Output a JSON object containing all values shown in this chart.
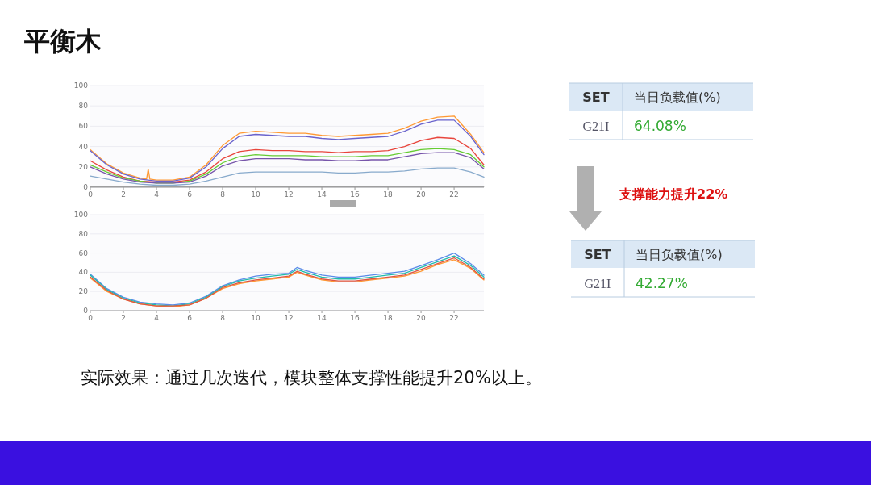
{
  "chart_data": [
    {
      "type": "line",
      "x": [
        0,
        1,
        2,
        3,
        4,
        5,
        6,
        7,
        8,
        9,
        10,
        11,
        12,
        13,
        14,
        15,
        16,
        17,
        18,
        19,
        20,
        21,
        22,
        23,
        23.8
      ],
      "xlim": [
        0,
        23.8
      ],
      "xticks": [
        0,
        2,
        4,
        6,
        8,
        10,
        12,
        14,
        16,
        18,
        20,
        22
      ],
      "ylim": [
        0,
        100
      ],
      "yticks": [
        0,
        20,
        40,
        60,
        80,
        100
      ],
      "grid": "y",
      "series": [
        {
          "color": "#ff9933",
          "x": [
            0,
            1,
            2,
            3,
            3.4,
            3.5,
            3.6,
            4,
            5,
            6,
            7,
            8,
            9,
            10,
            11,
            12,
            13,
            14,
            15,
            16,
            17,
            18,
            19,
            20,
            21,
            22,
            23,
            23.8
          ],
          "values": [
            37,
            23,
            14,
            9,
            8,
            18,
            8,
            7,
            7,
            10,
            22,
            41,
            53,
            55,
            54,
            53,
            53,
            51,
            50,
            51,
            52,
            53,
            58,
            65,
            69,
            70,
            52,
            34
          ]
        },
        {
          "color": "#6a63cc",
          "values": [
            36,
            22,
            13,
            8,
            6,
            6,
            9,
            20,
            38,
            50,
            52,
            51,
            50,
            50,
            48,
            47,
            48,
            49,
            50,
            55,
            62,
            66,
            66,
            50,
            32
          ]
        },
        {
          "color": "#e8453c",
          "values": [
            26,
            17,
            10,
            6,
            5,
            5,
            7,
            15,
            28,
            35,
            37,
            36,
            36,
            35,
            35,
            34,
            35,
            35,
            36,
            40,
            46,
            49,
            48,
            38,
            22
          ]
        },
        {
          "color": "#66cc33",
          "values": [
            22,
            15,
            9,
            6,
            4,
            4,
            6,
            13,
            24,
            30,
            32,
            31,
            31,
            31,
            30,
            30,
            30,
            31,
            31,
            34,
            37,
            38,
            37,
            32,
            20
          ]
        },
        {
          "color": "#7755aa",
          "values": [
            20,
            13,
            8,
            5,
            4,
            4,
            5,
            11,
            21,
            26,
            28,
            28,
            28,
            27,
            27,
            26,
            26,
            27,
            27,
            30,
            33,
            34,
            34,
            29,
            18
          ]
        },
        {
          "color": "#88aacc",
          "values": [
            11,
            8,
            5,
            3,
            2,
            2,
            3,
            6,
            10,
            14,
            15,
            15,
            15,
            15,
            15,
            14,
            14,
            15,
            15,
            16,
            18,
            19,
            19,
            15,
            10
          ]
        },
        {
          "color": "#777777",
          "values": [
            1,
            1,
            1,
            1,
            1,
            1,
            1,
            1,
            1,
            1,
            1,
            1,
            1,
            1,
            1,
            1,
            1,
            1,
            1,
            1,
            1,
            1,
            1,
            1,
            1
          ]
        }
      ]
    },
    {
      "type": "line",
      "x": [
        0,
        1,
        2,
        3,
        4,
        5,
        6,
        7,
        8,
        9,
        10,
        11,
        12,
        12.5,
        13,
        14,
        15,
        16,
        17,
        18,
        19,
        20,
        21,
        22,
        23,
        23.8
      ],
      "xlim": [
        0,
        23.8
      ],
      "xticks": [
        0,
        2,
        4,
        6,
        8,
        10,
        12,
        14,
        16,
        18,
        20,
        22
      ],
      "ylim": [
        0,
        100
      ],
      "yticks": [
        0,
        20,
        40,
        60,
        80,
        100
      ],
      "grid": "y",
      "series": [
        {
          "color": "#5a8be8",
          "values": [
            38,
            23,
            14,
            9,
            7,
            6,
            8,
            15,
            26,
            32,
            36,
            38,
            39,
            45,
            42,
            37,
            35,
            35,
            37,
            39,
            41,
            47,
            53,
            60,
            49,
            37
          ]
        },
        {
          "color": "#22bbaa",
          "values": [
            37,
            22,
            13,
            8,
            6,
            5,
            7,
            14,
            25,
            31,
            34,
            36,
            38,
            43,
            40,
            35,
            33,
            33,
            35,
            37,
            39,
            45,
            51,
            57,
            47,
            35
          ]
        },
        {
          "color": "#ff9933",
          "values": [
            34,
            20,
            12,
            7,
            5,
            4,
            6,
            13,
            23,
            28,
            31,
            33,
            35,
            40,
            37,
            32,
            30,
            30,
            32,
            34,
            36,
            41,
            48,
            53,
            44,
            32
          ]
        },
        {
          "color": "#dd5544",
          "values": [
            35,
            21,
            12,
            7,
            5,
            5,
            6,
            13,
            24,
            29,
            32,
            34,
            36,
            41,
            38,
            33,
            31,
            31,
            33,
            35,
            37,
            43,
            49,
            55,
            45,
            33
          ]
        }
      ]
    },
    {
      "type": "other",
      "title": "平衡木",
      "annotations": [
        "SET",
        "当日负载值(%)",
        "G21I",
        "64.08%",
        "支撑能力提升22%",
        "SET",
        "当日负载值(%)",
        "G21I",
        "42.27%",
        "实际效果：通过几次迭代，模块整体支撑性能提升20%以上。"
      ]
    }
  ]
}
